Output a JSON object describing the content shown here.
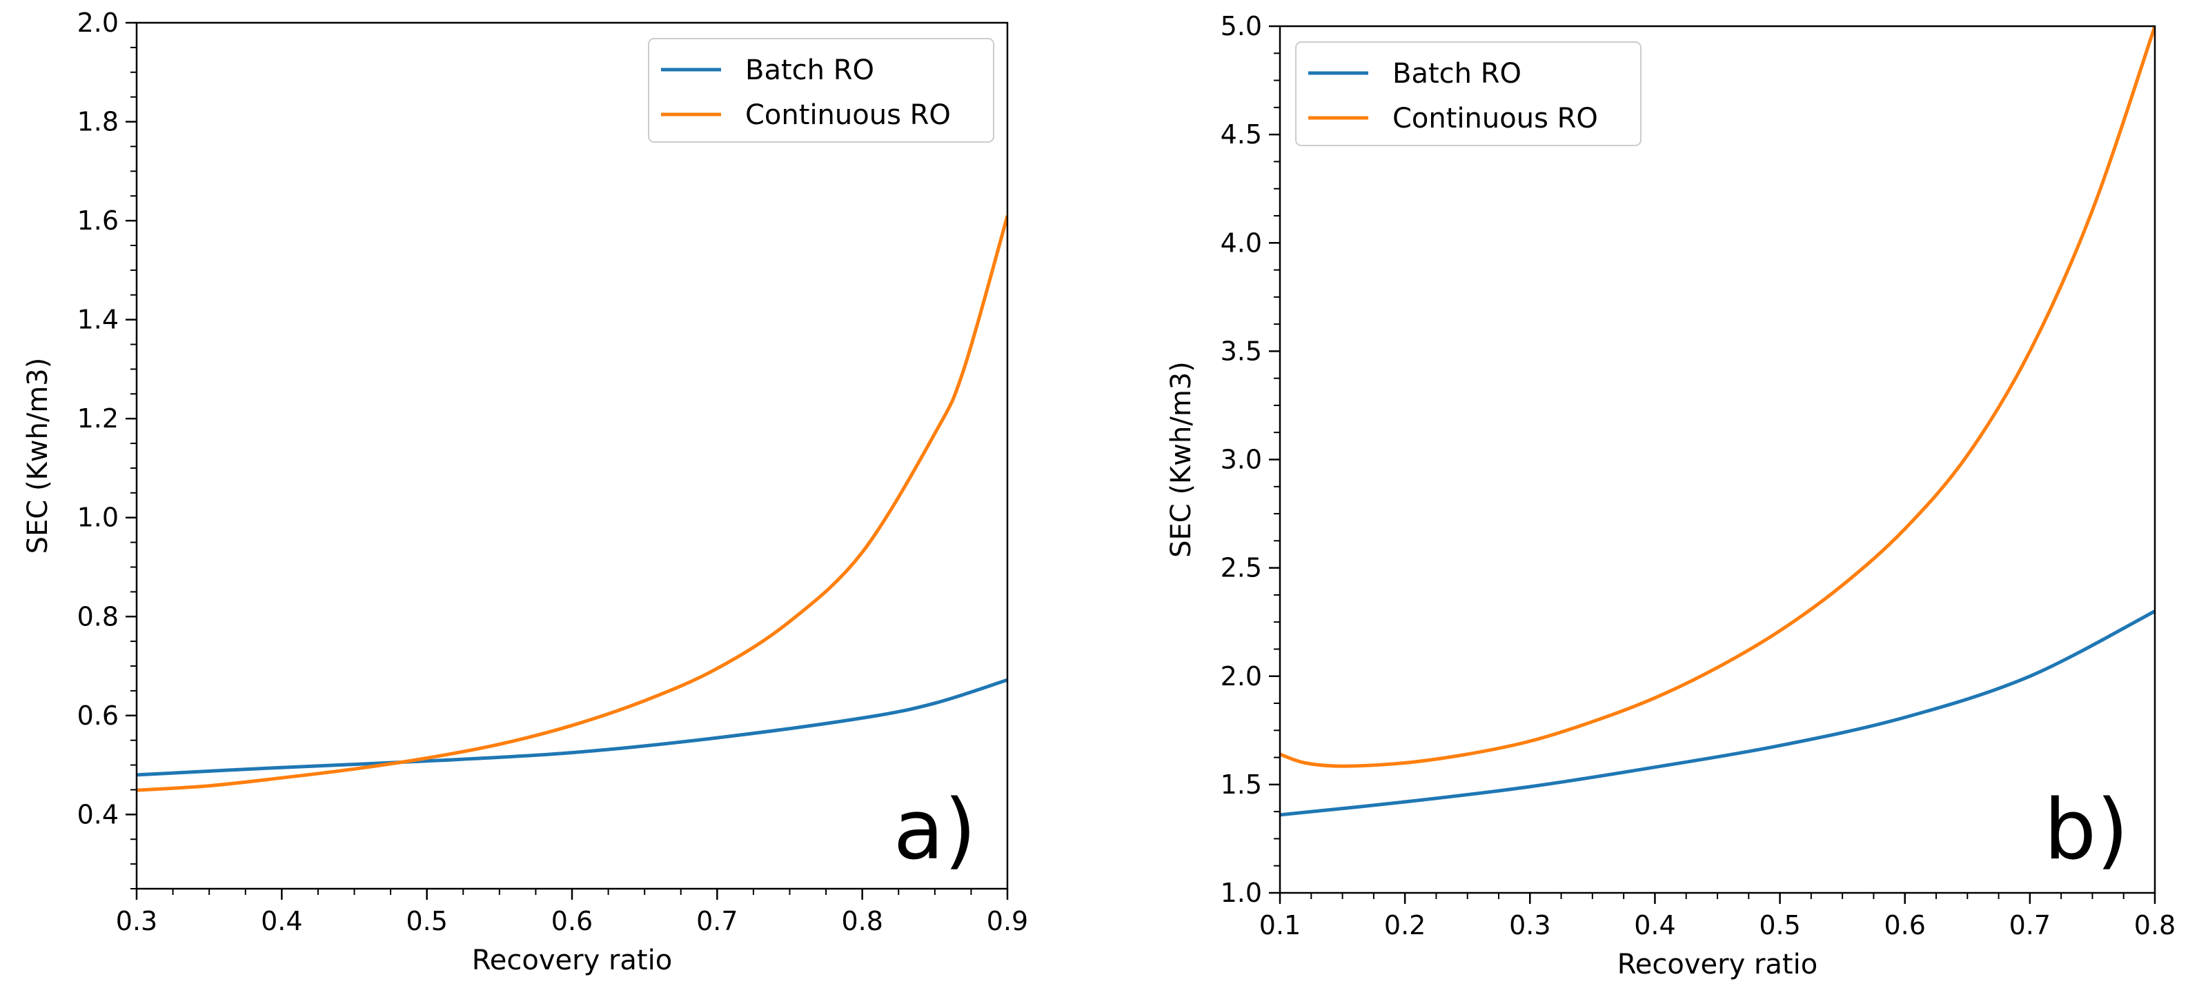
{
  "chart_data": [
    {
      "type": "line",
      "panel_tag": "a)",
      "xlabel": "Recovery ratio",
      "ylabel": "SEC (Kwh/m3)",
      "xlim": [
        0.3,
        0.9
      ],
      "ylim": [
        0.25,
        2.0
      ],
      "xticks": [
        0.3,
        0.4,
        0.5,
        0.6,
        0.7,
        0.8,
        0.9
      ],
      "xtick_labels": [
        "0.3",
        "0.4",
        "0.5",
        "0.6",
        "0.7",
        "0.8",
        "0.9"
      ],
      "yticks": [
        0.4,
        0.6,
        0.8,
        1.0,
        1.2,
        1.4,
        1.6,
        1.8,
        2.0
      ],
      "ytick_labels": [
        "0.4",
        "0.6",
        "0.8",
        "1.0",
        "1.2",
        "1.4",
        "1.6",
        "1.8",
        "2.0"
      ],
      "grid": false,
      "legend_position": "top-right",
      "series": [
        {
          "name": "Batch RO",
          "color": "#1f77b4",
          "x": [
            0.3,
            0.4,
            0.5,
            0.6,
            0.7,
            0.8,
            0.85,
            0.9
          ],
          "y": [
            0.48,
            0.495,
            0.508,
            0.525,
            0.555,
            0.595,
            0.625,
            0.672
          ]
        },
        {
          "name": "Continuous RO",
          "color": "#ff7f0e",
          "x": [
            0.3,
            0.35,
            0.4,
            0.45,
            0.5,
            0.55,
            0.6,
            0.65,
            0.7,
            0.75,
            0.8,
            0.85,
            0.87,
            0.9
          ],
          "y": [
            0.449,
            0.458,
            0.474,
            0.492,
            0.514,
            0.542,
            0.58,
            0.63,
            0.695,
            0.79,
            0.93,
            1.17,
            1.3,
            1.61
          ]
        }
      ]
    },
    {
      "type": "line",
      "panel_tag": "b)",
      "xlabel": "Recovery ratio",
      "ylabel": "SEC (Kwh/m3)",
      "xlim": [
        0.1,
        0.8
      ],
      "ylim": [
        1.0,
        5.0
      ],
      "xticks": [
        0.1,
        0.2,
        0.3,
        0.4,
        0.5,
        0.6,
        0.7,
        0.8
      ],
      "xtick_labels": [
        "0.1",
        "0.2",
        "0.3",
        "0.4",
        "0.5",
        "0.6",
        "0.7",
        "0.8"
      ],
      "yticks": [
        1.0,
        1.5,
        2.0,
        2.5,
        3.0,
        3.5,
        4.0,
        4.5,
        5.0
      ],
      "ytick_labels": [
        "1.0",
        "1.5",
        "2.0",
        "2.5",
        "3.0",
        "3.5",
        "4.0",
        "4.5",
        "5.0"
      ],
      "grid": false,
      "legend_position": "top-left",
      "series": [
        {
          "name": "Batch RO",
          "color": "#1f77b4",
          "x": [
            0.1,
            0.2,
            0.3,
            0.4,
            0.5,
            0.6,
            0.7,
            0.8
          ],
          "y": [
            1.36,
            1.42,
            1.49,
            1.58,
            1.68,
            1.81,
            2.0,
            2.3
          ]
        },
        {
          "name": "Continuous RO",
          "color": "#ff7f0e",
          "x": [
            0.1,
            0.12,
            0.15,
            0.2,
            0.25,
            0.3,
            0.35,
            0.4,
            0.45,
            0.5,
            0.55,
            0.6,
            0.65,
            0.7,
            0.75,
            0.8
          ],
          "y": [
            1.64,
            1.6,
            1.585,
            1.6,
            1.64,
            1.7,
            1.79,
            1.9,
            2.04,
            2.21,
            2.42,
            2.68,
            3.02,
            3.5,
            4.15,
            5.0
          ]
        }
      ]
    }
  ]
}
